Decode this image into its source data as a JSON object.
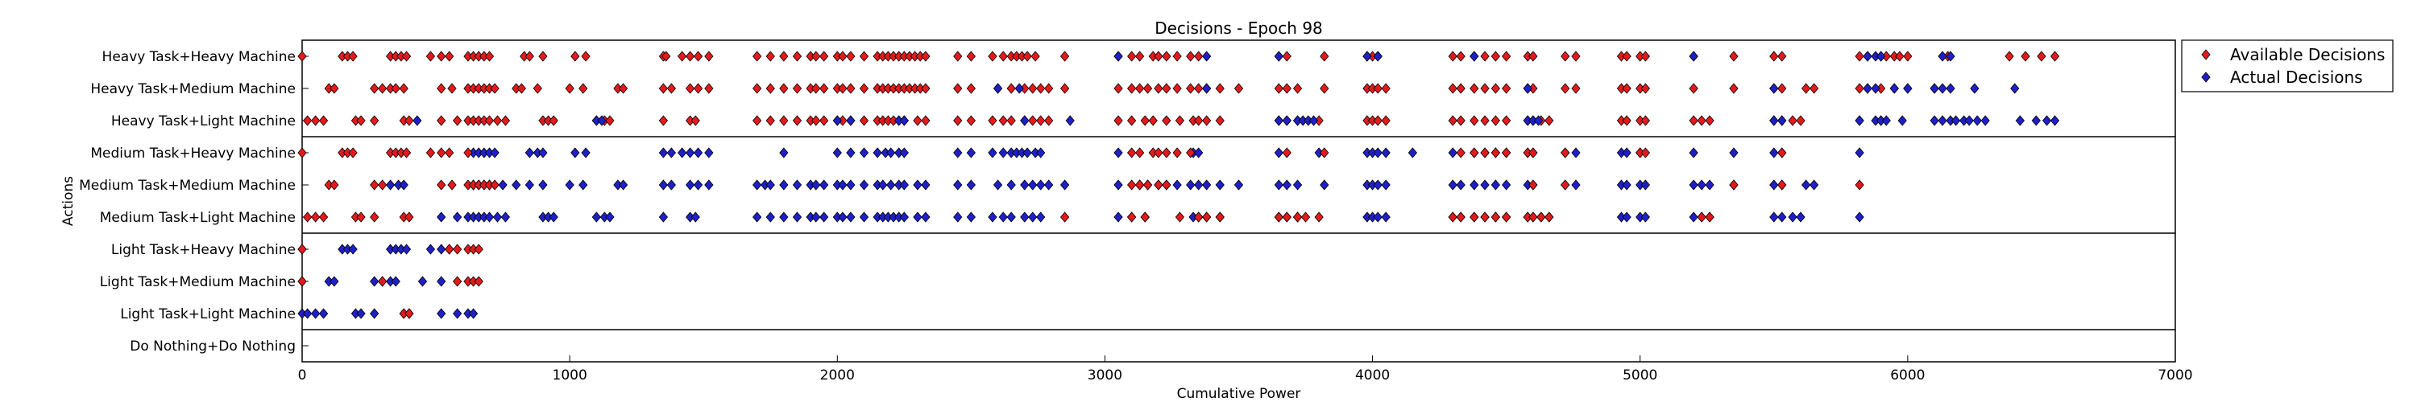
{
  "chart_data": {
    "type": "scatter",
    "title": "Decisions - Epoch 98",
    "xlabel": "Cumulative Power",
    "ylabel": "Actions",
    "xlim": [
      0,
      7000
    ],
    "xticks": [
      0,
      1000,
      2000,
      3000,
      4000,
      5000,
      6000,
      7000
    ],
    "grid": false,
    "legend_position": "outside-top-right",
    "categories": [
      "Heavy Task+Heavy Machine",
      "Heavy Task+Medium Machine",
      "Heavy Task+Light Machine",
      "Medium Task+Heavy Machine",
      "Medium Task+Medium Machine",
      "Medium Task+Light Machine",
      "Light Task+Heavy Machine",
      "Light Task+Medium Machine",
      "Light Task+Light Machine",
      "Do Nothing+Do Nothing"
    ],
    "group_separators_after": [
      2,
      5,
      8
    ],
    "series": [
      {
        "name": "Available Decisions",
        "color": "#e31a1c",
        "marker": "diamond",
        "rows": [
          [
            0,
            150,
            170,
            190,
            330,
            350,
            370,
            390,
            480,
            520,
            550,
            620,
            640,
            660,
            680,
            700,
            830,
            850,
            900,
            1020,
            1060,
            1350,
            1360,
            1420,
            1450,
            1480,
            1520,
            1700,
            1750,
            1800,
            1850,
            1900,
            1920,
            1950,
            2000,
            2020,
            2050,
            2100,
            2150,
            2170,
            2190,
            2210,
            2230,
            2250,
            2270,
            2290,
            2310,
            2330,
            2450,
            2500,
            2580,
            2620,
            2650,
            2670,
            2690,
            2710,
            2740,
            2850,
            3050,
            3100,
            3130,
            3180,
            3200,
            3230,
            3270,
            3320,
            3350,
            3650,
            3680,
            3820,
            3980,
            4000,
            4020,
            4300,
            4330,
            4380,
            4420,
            4460,
            4500,
            4580,
            4600,
            4720,
            4760,
            4930,
            4950,
            5000,
            5020,
            5200,
            5350,
            5500,
            5530,
            5820,
            5850,
            5900,
            5920,
            5950,
            5970,
            6000,
            6150,
            6380,
            6440,
            6500,
            6550
          ],
          [
            100,
            120,
            270,
            300,
            330,
            350,
            380,
            520,
            560,
            620,
            640,
            660,
            680,
            700,
            720,
            800,
            820,
            880,
            1000,
            1050,
            1180,
            1200,
            1350,
            1380,
            1450,
            1480,
            1520,
            1700,
            1750,
            1800,
            1850,
            1900,
            1920,
            1950,
            2000,
            2020,
            2050,
            2100,
            2150,
            2170,
            2190,
            2210,
            2230,
            2250,
            2270,
            2290,
            2310,
            2330,
            2450,
            2500,
            2600,
            2650,
            2700,
            2730,
            2760,
            2790,
            2850,
            3050,
            3100,
            3130,
            3160,
            3200,
            3230,
            3270,
            3320,
            3350,
            3380,
            3430,
            3500,
            3650,
            3680,
            3720,
            3820,
            3980,
            4000,
            4020,
            4050,
            4300,
            4330,
            4380,
            4420,
            4460,
            4500,
            4580,
            4600,
            4720,
            4760,
            4930,
            4950,
            5000,
            5020,
            5200,
            5350,
            5500,
            5530,
            5620,
            5650,
            5820,
            5850,
            5900,
            5950,
            6000,
            6100
          ],
          [
            20,
            50,
            80,
            200,
            220,
            270,
            380,
            400,
            520,
            580,
            620,
            640,
            660,
            680,
            700,
            730,
            760,
            900,
            920,
            940,
            1100,
            1130,
            1150,
            1350,
            1450,
            1470,
            1700,
            1750,
            1800,
            1850,
            1900,
            1920,
            1950,
            2000,
            2020,
            2050,
            2100,
            2150,
            2170,
            2190,
            2210,
            2230,
            2250,
            2300,
            2330,
            2450,
            2500,
            2580,
            2620,
            2650,
            2700,
            2730,
            2760,
            2790,
            3050,
            3100,
            3150,
            3180,
            3230,
            3280,
            3330,
            3350,
            3380,
            3430,
            3650,
            3680,
            3720,
            3800,
            3980,
            4000,
            4020,
            4050,
            4300,
            4330,
            4380,
            4420,
            4460,
            4500,
            4580,
            4600,
            4630,
            4660,
            4930,
            4950,
            5000,
            5020,
            5200,
            5230,
            5260,
            5500,
            5530,
            5570,
            5600,
            5820,
            5900
          ]
        ]
      },
      {
        "name": "Actual Decisions",
        "color": "#1f1fc8",
        "marker": "diamond",
        "rows": [
          [
            3050,
            3380,
            3650,
            3980,
            4020,
            4380,
            5200,
            5850,
            5880,
            5900,
            6130,
            6160
          ],
          [
            2600,
            2680,
            3380,
            4580,
            5500,
            5850,
            5880,
            5950,
            6000,
            6100,
            6130,
            6160,
            6250,
            6400
          ],
          [
            430,
            1100,
            1120,
            2000,
            2050,
            2230,
            2250,
            2700,
            2870,
            3650,
            3680,
            3720,
            3740,
            3760,
            3780,
            4580,
            4600,
            4620,
            5500,
            5530,
            5820,
            5880,
            5900,
            5920,
            5980,
            6100,
            6130,
            6160,
            6180,
            6210,
            6230,
            6260,
            6290,
            6420,
            6480,
            6520,
            6550
          ]
        ]
      }
    ],
    "actual_medium": [
      [
        640,
        660,
        680,
        700,
        720,
        850,
        880,
        900,
        1020,
        1060,
        1350,
        1380,
        1420,
        1450,
        1480,
        1520,
        1800,
        2000,
        2050,
        2100,
        2150,
        2180,
        2200,
        2230,
        2250,
        2450,
        2500,
        2580,
        2620,
        2650,
        2670,
        2690,
        2710,
        2740,
        2760,
        3050,
        3330,
        3350,
        3650,
        3800,
        3980,
        4000,
        4020,
        4050,
        4150,
        4300,
        4380,
        4420,
        4460,
        4500,
        4580,
        4600,
        4720,
        4760,
        4930,
        4950,
        5000,
        5200,
        5350,
        5500,
        5530,
        5820
      ],
      [
        330,
        360,
        380,
        640,
        660,
        680,
        700,
        750,
        800,
        850,
        900,
        1000,
        1050,
        1180,
        1200,
        1350,
        1380,
        1450,
        1480,
        1520,
        1700,
        1730,
        1750,
        1800,
        1850,
        1900,
        1920,
        1950,
        2000,
        2020,
        2050,
        2100,
        2150,
        2170,
        2200,
        2230,
        2250,
        2300,
        2330,
        2450,
        2500,
        2600,
        2650,
        2700,
        2730,
        2760,
        2790,
        2850,
        3050,
        3130,
        3160,
        3200,
        3230,
        3270,
        3320,
        3350,
        3380,
        3430,
        3500,
        3650,
        3680,
        3720,
        3820,
        3980,
        4000,
        4020,
        4050,
        4300,
        4330,
        4380,
        4420,
        4460,
        4500,
        4580,
        4600,
        4720,
        4760,
        4930,
        4950,
        5000,
        5020,
        5200,
        5230,
        5260,
        5350,
        5500,
        5530,
        5620,
        5650
      ],
      [
        520,
        580,
        620,
        640,
        660,
        680,
        700,
        730,
        760,
        900,
        920,
        940,
        1100,
        1130,
        1150,
        1350,
        1450,
        1470,
        1700,
        1750,
        1800,
        1850,
        1900,
        1920,
        1950,
        2000,
        2020,
        2050,
        2100,
        2150,
        2170,
        2190,
        2210,
        2230,
        2250,
        2300,
        2330,
        2450,
        2500,
        2580,
        2620,
        2650,
        2700,
        2730,
        2760,
        3050,
        3100,
        3150,
        3330,
        3350,
        3380,
        3430,
        3650,
        3680,
        3720,
        3980,
        4000,
        4020,
        4050,
        4300,
        4330,
        4380,
        4420,
        4460,
        4500,
        4580,
        4600,
        4630,
        4660,
        4930,
        4950,
        5000,
        5020,
        5200,
        5230,
        5260,
        5500,
        5530,
        5570,
        5600,
        5820
      ]
    ],
    "available_medium": [
      [
        0,
        150,
        170,
        190,
        330,
        350,
        370,
        390,
        480,
        520,
        550,
        620,
        3100,
        3130,
        3180,
        3200,
        3230,
        3270,
        3320,
        3680,
        3820,
        4330,
        4380,
        4420,
        4460,
        4500,
        4580,
        4600,
        4720,
        5000,
        5020,
        5530
      ],
      [
        100,
        120,
        270,
        300,
        520,
        560,
        620,
        640,
        660,
        680,
        700,
        720,
        3100,
        3130,
        3160,
        3200,
        3230,
        4600,
        4720,
        5350,
        5530,
        5820
      ],
      [
        20,
        50,
        80,
        200,
        220,
        270,
        380,
        400,
        2850,
        3100,
        3150,
        3280,
        3350,
        3380,
        3430,
        3650,
        3680,
        3720,
        3750,
        3800,
        4300,
        4330,
        4380,
        4420,
        4460,
        4500,
        4580,
        4600,
        4630,
        4660,
        5230,
        5260
      ]
    ],
    "light_available": [
      [
        0,
        550,
        580,
        620,
        640,
        660
      ],
      [
        0,
        300,
        580,
        620,
        640,
        660
      ],
      [
        380,
        400
      ]
    ],
    "light_actual": [
      [
        0,
        150,
        170,
        190,
        330,
        350,
        370,
        390,
        480,
        520,
        550
      ],
      [
        0,
        100,
        120,
        270,
        300,
        330,
        350,
        450,
        520
      ],
      [
        0,
        20,
        50,
        80,
        200,
        220,
        270,
        380,
        400,
        520,
        580,
        620,
        640
      ]
    ],
    "legend": [
      "Available Decisions",
      "Actual Decisions"
    ]
  }
}
